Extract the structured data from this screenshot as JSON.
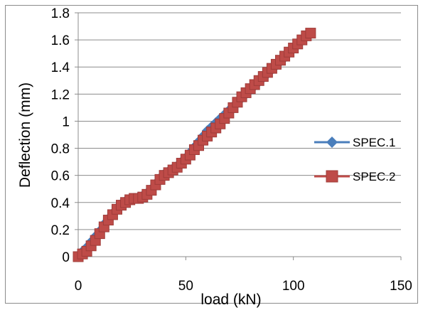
{
  "chart_data": {
    "type": "line",
    "xlabel": "load (kN)",
    "ylabel": "Deflection (mm)",
    "xlim": [
      0,
      150
    ],
    "ylim": [
      0,
      1.8
    ],
    "xticks": [
      "0",
      "50",
      "100",
      "150"
    ],
    "yticks": [
      "0",
      "0.2",
      "0.4",
      "0.6",
      "0.8",
      "1",
      "1.2",
      "1.4",
      "1.6",
      "1.8"
    ],
    "grid": "horizontal",
    "legend_position": "right",
    "series": [
      {
        "name": "SPEC.1",
        "color": "#4a7ebb",
        "marker": "diamond",
        "x": [
          0,
          2,
          4,
          6,
          8,
          10,
          12,
          14,
          16,
          18,
          20,
          22,
          24,
          26,
          28,
          30,
          32,
          34,
          36,
          38,
          40,
          42,
          44,
          46,
          48,
          50,
          52,
          54,
          56,
          58,
          60,
          62,
          64,
          66,
          68,
          70,
          72,
          74,
          76,
          78,
          80,
          82,
          84,
          86,
          88,
          90,
          92,
          94,
          96
        ],
        "y": [
          0,
          0.04,
          0.07,
          0.11,
          0.15,
          0.19,
          0.24,
          0.28,
          0.32,
          0.36,
          0.39,
          0.41,
          0.42,
          0.43,
          0.44,
          0.45,
          0.47,
          0.5,
          0.54,
          0.58,
          0.61,
          0.63,
          0.65,
          0.67,
          0.7,
          0.73,
          0.77,
          0.81,
          0.85,
          0.89,
          0.93,
          0.96,
          0.99,
          1.02,
          1.05,
          1.08,
          1.11,
          1.14,
          1.17,
          1.2,
          1.23,
          1.26,
          1.29,
          1.32,
          1.35,
          1.38,
          1.41,
          1.44,
          1.47
        ]
      },
      {
        "name": "SPEC.2",
        "color": "#be4b48",
        "marker": "square",
        "x": [
          0,
          2,
          4,
          6,
          8,
          10,
          12,
          14,
          16,
          18,
          20,
          22,
          24,
          26,
          28,
          30,
          32,
          34,
          36,
          38,
          40,
          42,
          44,
          46,
          48,
          50,
          52,
          54,
          56,
          58,
          60,
          62,
          64,
          66,
          68,
          70,
          72,
          74,
          76,
          78,
          80,
          82,
          84,
          86,
          88,
          90,
          92,
          94,
          96,
          98,
          100,
          102,
          104,
          106,
          108
        ],
        "y": [
          0,
          0.02,
          0.04,
          0.08,
          0.12,
          0.17,
          0.22,
          0.27,
          0.31,
          0.35,
          0.38,
          0.4,
          0.42,
          0.43,
          0.43,
          0.44,
          0.46,
          0.49,
          0.53,
          0.57,
          0.6,
          0.62,
          0.64,
          0.66,
          0.69,
          0.72,
          0.75,
          0.79,
          0.82,
          0.86,
          0.89,
          0.92,
          0.95,
          0.98,
          1.02,
          1.06,
          1.1,
          1.14,
          1.18,
          1.21,
          1.24,
          1.27,
          1.3,
          1.33,
          1.36,
          1.39,
          1.42,
          1.45,
          1.48,
          1.51,
          1.54,
          1.57,
          1.6,
          1.63,
          1.65
        ]
      }
    ]
  }
}
